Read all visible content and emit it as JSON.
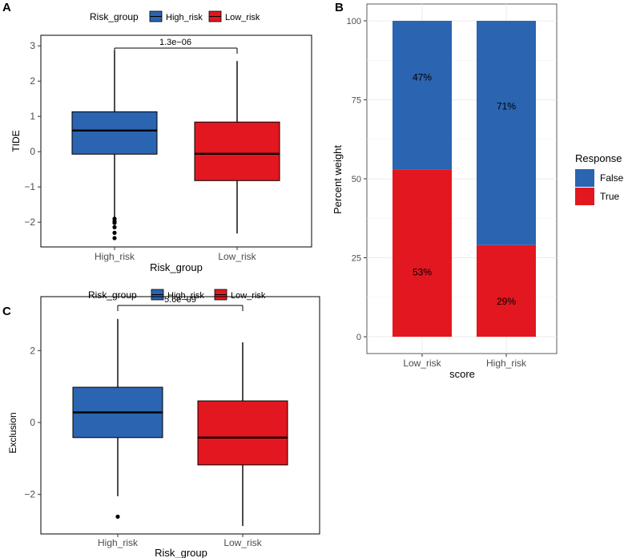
{
  "colors": {
    "high": "#2b64b0",
    "low": "#e3171f",
    "false": "#2b64b0",
    "true": "#e3171f",
    "panel_border": "#000000",
    "grid": "#ebebeb",
    "axis_text": "#4d4d4d"
  },
  "panels": {
    "A": {
      "label": "A"
    },
    "B": {
      "label": "B"
    },
    "C": {
      "label": "C"
    }
  },
  "chart_data": [
    {
      "id": "A",
      "type": "box",
      "ylabel": "TIDE",
      "xlabel": "Risk_group",
      "legend_title": "Risk_group",
      "legend": [
        "High_risk",
        "Low_risk"
      ],
      "categories": [
        "High_risk",
        "Low_risk"
      ],
      "ylim": [
        -2.7,
        3.3
      ],
      "yticks": [
        -2,
        -1,
        0,
        1,
        2,
        3
      ],
      "ytick_labels": [
        "−2",
        "−1",
        "0",
        "1",
        "2",
        "3"
      ],
      "pvalue": "1.3e−06",
      "boxes": [
        {
          "name": "High_risk",
          "min": -1.85,
          "q1": -0.07,
          "median": 0.6,
          "q3": 1.13,
          "max": 2.87,
          "outliers": [
            -1.9,
            -1.97,
            -2.02,
            -2.14,
            -2.3,
            -2.45
          ]
        },
        {
          "name": "Low_risk",
          "min": -2.32,
          "q1": -0.82,
          "median": -0.06,
          "q3": 0.84,
          "max": 2.57,
          "outliers": []
        }
      ]
    },
    {
      "id": "B",
      "type": "stacked-bar",
      "ylabel": "Percent weight",
      "xlabel": "score",
      "legend_title": "Response",
      "legend": [
        "False",
        "True"
      ],
      "categories": [
        "Low_risk",
        "High_risk"
      ],
      "ylim": [
        0,
        100
      ],
      "yticks": [
        0,
        25,
        50,
        75,
        100
      ],
      "series": [
        {
          "name": "True",
          "values": [
            53,
            29
          ],
          "labels": [
            "53%",
            "29%"
          ]
        },
        {
          "name": "False",
          "values": [
            47,
            71
          ],
          "labels": [
            "47%",
            "71%"
          ]
        }
      ]
    },
    {
      "id": "C",
      "type": "box",
      "ylabel": "Exclusion",
      "xlabel": "Risk_group",
      "legend_title": "Risk_group",
      "legend": [
        "High_risk",
        "Low_risk"
      ],
      "categories": [
        "High_risk",
        "Low_risk"
      ],
      "ylim": [
        -3.1,
        3.5
      ],
      "yticks": [
        -2,
        0,
        2
      ],
      "ytick_labels": [
        "−2",
        "0",
        "2"
      ],
      "pvalue": "5.6e−09",
      "boxes": [
        {
          "name": "High_risk",
          "min": -2.05,
          "q1": -0.42,
          "median": 0.28,
          "q3": 0.98,
          "max": 2.88,
          "outliers": [
            -2.62
          ]
        },
        {
          "name": "Low_risk",
          "min": -2.88,
          "q1": -1.18,
          "median": -0.42,
          "q3": 0.6,
          "max": 2.23,
          "outliers": []
        }
      ]
    }
  ]
}
